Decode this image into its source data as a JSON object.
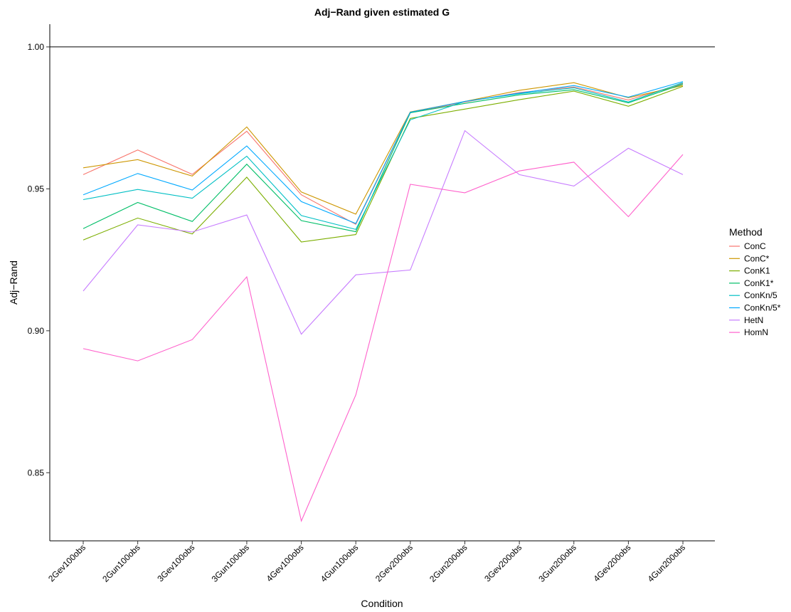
{
  "chart_data": {
    "type": "line",
    "title": "Adj−Rand given estimated G",
    "xlabel": "Condition",
    "ylabel": "Adj−Rand",
    "categories": [
      "2Gev100obs",
      "2Gun100obs",
      "3Gev100obs",
      "3Gun100obs",
      "4Gev100obs",
      "4Gun100obs",
      "2Gev200obs",
      "2Gun200obs",
      "3Gev200obs",
      "3Gun200obs",
      "4Gev200obs",
      "4Gun200obs"
    ],
    "ylim": [
      0.826,
      1.008
    ],
    "yticks": [
      0.85,
      0.9,
      0.95,
      1.0
    ],
    "ytick_labels": [
      "0.85",
      "0.90",
      "0.95",
      "1.00"
    ],
    "reference_line": 1.0,
    "grid": false,
    "legend": {
      "title": "Method",
      "position": "right"
    },
    "series": [
      {
        "name": "ConC",
        "color": "#F8766D",
        "values": [
          0.955,
          0.9637,
          0.9551,
          0.9703,
          0.9479,
          0.9375,
          0.9768,
          0.9806,
          0.9839,
          0.9859,
          0.9813,
          0.9871
        ]
      },
      {
        "name": "ConC*",
        "color": "#CD9600",
        "values": [
          0.9574,
          0.9603,
          0.9545,
          0.9718,
          0.9489,
          0.9411,
          0.9771,
          0.9808,
          0.9847,
          0.9874,
          0.9821,
          0.9864
        ]
      },
      {
        "name": "ConK1",
        "color": "#7CAE00",
        "values": [
          0.932,
          0.9397,
          0.9341,
          0.9541,
          0.9313,
          0.9339,
          0.9748,
          0.9781,
          0.9814,
          0.9844,
          0.9791,
          0.9861
        ]
      },
      {
        "name": "ConK1*",
        "color": "#00BE67",
        "values": [
          0.936,
          0.9452,
          0.9385,
          0.9587,
          0.9388,
          0.9349,
          0.9768,
          0.9801,
          0.9831,
          0.9849,
          0.9803,
          0.9869
        ]
      },
      {
        "name": "ConKn/5",
        "color": "#00BFC4",
        "values": [
          0.9462,
          0.9498,
          0.9467,
          0.9615,
          0.9406,
          0.9357,
          0.9743,
          0.9808,
          0.9835,
          0.9856,
          0.9806,
          0.9874
        ]
      },
      {
        "name": "ConKn/5*",
        "color": "#00A9FF",
        "values": [
          0.9479,
          0.9554,
          0.9496,
          0.9651,
          0.9455,
          0.9378,
          0.977,
          0.9808,
          0.9837,
          0.9864,
          0.9823,
          0.9878
        ]
      },
      {
        "name": "HetN",
        "color": "#C77CFF",
        "values": [
          0.914,
          0.9373,
          0.9348,
          0.9408,
          0.8988,
          0.9197,
          0.9214,
          0.9705,
          0.955,
          0.951,
          0.9643,
          0.955
        ]
      },
      {
        "name": "HomN",
        "color": "#FF61CC",
        "values": [
          0.8937,
          0.8894,
          0.8969,
          0.919,
          0.833,
          0.8774,
          0.9516,
          0.9486,
          0.9563,
          0.9594,
          0.9402,
          0.9621
        ]
      }
    ]
  }
}
